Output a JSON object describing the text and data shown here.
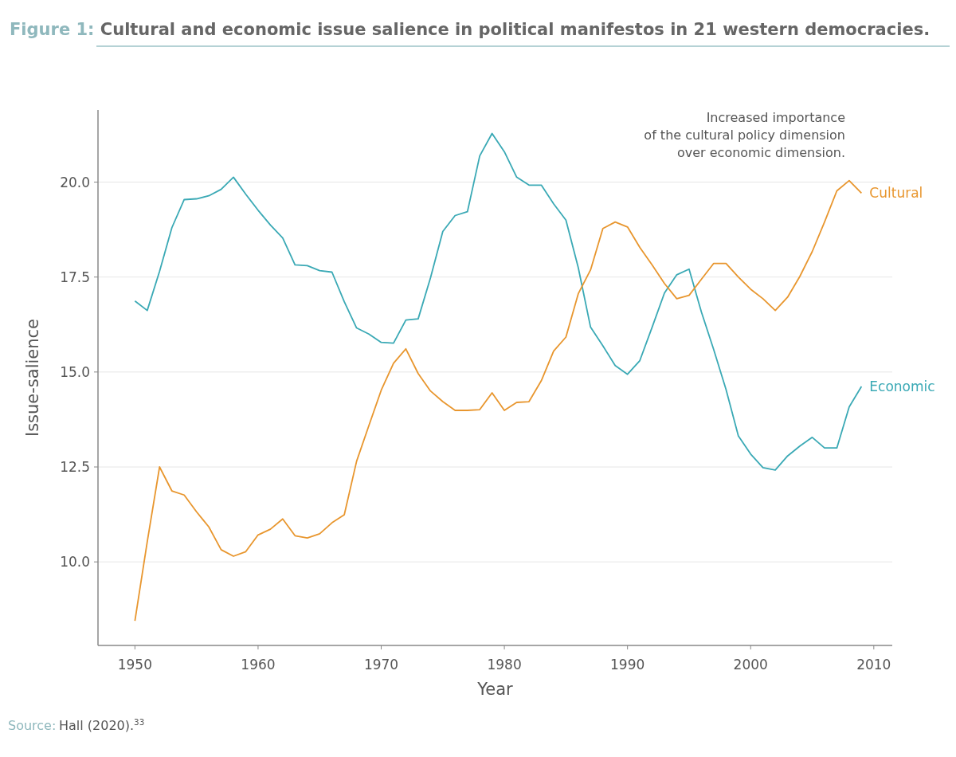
{
  "chart_data": {
    "type": "line",
    "title": "Figure 1: Cultural and economic issue salience in political manifestos in 21 western democracies.",
    "xlabel": "Year",
    "ylabel": "Issue-salience",
    "x": [
      1950,
      1951,
      1952,
      1953,
      1954,
      1955,
      1956,
      1957,
      1958,
      1959,
      1960,
      1961,
      1962,
      1963,
      1964,
      1965,
      1966,
      1967,
      1968,
      1969,
      1970,
      1971,
      1972,
      1973,
      1974,
      1975,
      1976,
      1977,
      1978,
      1979,
      1980,
      1981,
      1982,
      1983,
      1984,
      1985,
      1986,
      1987,
      1988,
      1989,
      1990,
      1991,
      1992,
      1993,
      1994,
      1995,
      1996,
      1997,
      1998,
      1999,
      2000,
      2001,
      2002,
      2003,
      2004,
      2005,
      2006,
      2007,
      2008,
      2009
    ],
    "series": [
      {
        "name": "Economic",
        "color": "#3aa9b5",
        "values": [
          16.87,
          16.62,
          17.65,
          18.8,
          19.54,
          19.56,
          19.64,
          19.81,
          20.13,
          19.68,
          19.26,
          18.87,
          18.53,
          17.82,
          17.8,
          17.67,
          17.63,
          16.85,
          16.16,
          16.0,
          15.78,
          15.76,
          16.37,
          16.4,
          17.48,
          18.7,
          19.12,
          19.22,
          20.69,
          21.28,
          20.8,
          20.13,
          19.92,
          19.92,
          19.43,
          19.0,
          17.75,
          16.18,
          15.69,
          15.17,
          14.94,
          15.3,
          16.18,
          17.08,
          17.56,
          17.71,
          16.58,
          15.59,
          14.54,
          13.32,
          12.84,
          12.48,
          12.42,
          12.79,
          13.05,
          13.28,
          13.0,
          13.0,
          14.08,
          14.62
        ]
      },
      {
        "name": "Cultural",
        "color": "#e8962e",
        "values": [
          8.45,
          10.53,
          12.5,
          11.87,
          11.76,
          11.32,
          10.92,
          10.32,
          10.15,
          10.27,
          10.71,
          10.86,
          11.13,
          10.69,
          10.63,
          10.74,
          11.03,
          11.24,
          12.65,
          13.59,
          14.52,
          15.23,
          15.61,
          14.96,
          14.5,
          14.22,
          13.99,
          13.99,
          14.01,
          14.45,
          13.99,
          14.2,
          14.22,
          14.77,
          15.55,
          15.92,
          17.06,
          17.69,
          18.78,
          18.95,
          18.82,
          18.28,
          17.82,
          17.33,
          16.93,
          17.02,
          17.44,
          17.86,
          17.86,
          17.5,
          17.18,
          16.93,
          16.62,
          16.97,
          17.52,
          18.17,
          18.95,
          19.77,
          20.04,
          19.71
        ]
      }
    ],
    "xlim": [
      1947,
      2011.5
    ],
    "xticks": [
      1950,
      1960,
      1970,
      1980,
      1990,
      2000,
      2010
    ],
    "ylim": [
      7.8,
      21.9
    ],
    "yticks": [
      {
        "value": 10,
        "label": "10.0"
      },
      {
        "value": 12.5,
        "label": "12.5"
      },
      {
        "value": 15,
        "label": "15.0"
      },
      {
        "value": 17.5,
        "label": "17.5"
      },
      {
        "value": 20,
        "label": "20.0"
      }
    ],
    "grid": "y",
    "legend": false,
    "marker": "none",
    "line_style": "solid",
    "annotations": [
      "Increased importance\nof the cultural policy dimension\nover economic dimension.",
      "Source: Hall (2020).$^{33}$"
    ]
  }
}
